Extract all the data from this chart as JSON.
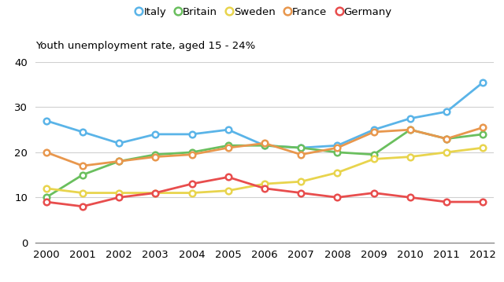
{
  "years": [
    2000,
    2001,
    2002,
    2003,
    2004,
    2005,
    2006,
    2007,
    2008,
    2009,
    2010,
    2011,
    2012
  ],
  "series": {
    "Italy": [
      27,
      24.5,
      22,
      24,
      24,
      25,
      21.5,
      21,
      21.5,
      25,
      27.5,
      29,
      35.5
    ],
    "Britain": [
      10,
      15,
      18,
      19.5,
      20,
      21.5,
      21.5,
      21,
      20,
      19.5,
      25,
      23,
      24
    ],
    "Sweden": [
      12,
      11,
      11,
      11,
      11,
      11.5,
      13,
      13.5,
      15.5,
      18.5,
      19,
      20,
      21
    ],
    "France": [
      20,
      17,
      18,
      19,
      19.5,
      21,
      22,
      19.5,
      21,
      24.5,
      25,
      23,
      25.5
    ],
    "Germany": [
      9,
      8,
      10,
      11,
      13,
      14.5,
      12,
      11,
      10,
      11,
      10,
      9,
      9
    ]
  },
  "colors": {
    "Italy": "#5ab4e8",
    "Britain": "#6abf5e",
    "Sweden": "#e8d44d",
    "France": "#e8974d",
    "Germany": "#e84d4d"
  },
  "title": "Youth unemployment rate, aged 15 - 24%",
  "ylim": [
    0,
    40
  ],
  "yticks": [
    0,
    10,
    20,
    30,
    40
  ],
  "legend_order": [
    "Italy",
    "Britain",
    "Sweden",
    "France",
    "Germany"
  ],
  "marker": "o",
  "marker_size": 5.5,
  "linewidth": 2.0
}
